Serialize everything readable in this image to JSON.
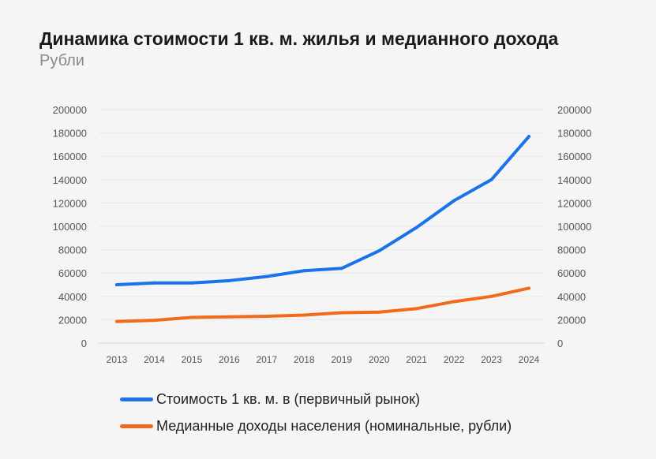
{
  "title": "Динамика стоимости 1 кв. м. жилья и медианного дохода",
  "subtitle": "Рубли",
  "chart_data": {
    "type": "line",
    "x": [
      "2013",
      "2014",
      "2015",
      "2016",
      "2017",
      "2018",
      "2019",
      "2020",
      "2021",
      "2022",
      "2023",
      "2024"
    ],
    "yticks": [
      "0",
      "20000",
      "40000",
      "60000",
      "80000",
      "100000",
      "120000",
      "140000",
      "160000",
      "180000",
      "200000"
    ],
    "ylim": [
      0,
      200000
    ],
    "grid": true,
    "legend_position": "bottom",
    "series": [
      {
        "name": "Стоимость 1 кв. м. в (первичный рынок)",
        "color": "#1a73e8",
        "values": [
          50000,
          51500,
          51500,
          53500,
          57000,
          62000,
          64000,
          79000,
          99000,
          122000,
          140000,
          177000
        ]
      },
      {
        "name": "Медианные доходы населения (номинальные, рубли)",
        "color": "#f26a1b",
        "values": [
          18500,
          19500,
          22000,
          22500,
          23000,
          24000,
          26000,
          26500,
          29500,
          35500,
          40000,
          47000
        ]
      }
    ]
  }
}
